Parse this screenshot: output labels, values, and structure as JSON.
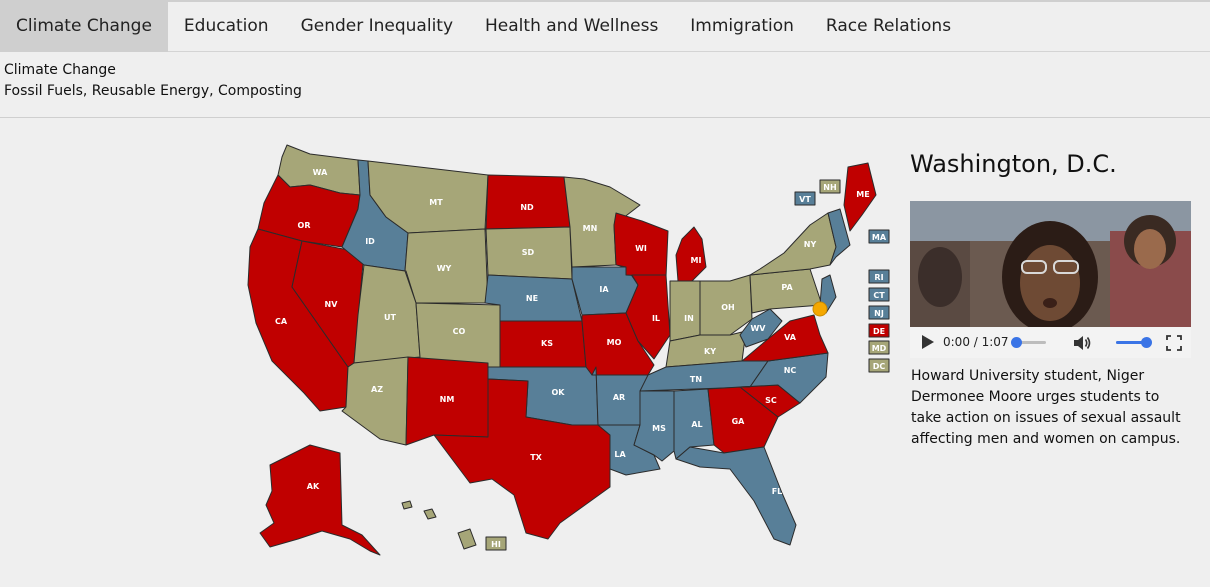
{
  "tabs": [
    {
      "label": "Climate Change",
      "active": true
    },
    {
      "label": "Education"
    },
    {
      "label": "Gender Inequality"
    },
    {
      "label": "Health and Wellness"
    },
    {
      "label": "Immigration"
    },
    {
      "label": "Race Relations"
    }
  ],
  "topic": {
    "title": "Climate Change",
    "keywords": "Fossil Fuels, Reusable Energy, Composting"
  },
  "colors": {
    "red": "#c00000",
    "blue": "#587f98",
    "olive": "#a6a678",
    "marker": "#f5a800"
  },
  "map": {
    "states": {
      "WA": "olive",
      "OR": "red",
      "CA": "red",
      "NV": "red",
      "ID": "blue",
      "MT": "olive",
      "WY": "olive",
      "UT": "olive",
      "AZ": "olive",
      "CO": "olive",
      "NM": "red",
      "ND": "red",
      "SD": "olive",
      "NE": "blue",
      "KS": "red",
      "OK": "blue",
      "TX": "red",
      "MN": "olive",
      "IA": "blue",
      "MO": "red",
      "AR": "blue",
      "LA": "blue",
      "WI": "red",
      "IL": "red",
      "MI": "red",
      "IN": "olive",
      "OH": "olive",
      "KY": "olive",
      "TN": "blue",
      "MS": "blue",
      "AL": "blue",
      "GA": "red",
      "FL": "blue",
      "SC": "red",
      "NC": "blue",
      "VA": "red",
      "WV": "blue",
      "PA": "olive",
      "NY": "olive",
      "ME": "red",
      "AK": "red",
      "HI": "olive"
    },
    "small_states": [
      {
        "code": "VT",
        "color": "blue"
      },
      {
        "code": "NH",
        "color": "olive"
      },
      {
        "code": "MA",
        "color": "blue"
      },
      {
        "code": "RI",
        "color": "blue"
      },
      {
        "code": "CT",
        "color": "blue"
      },
      {
        "code": "NJ",
        "color": "blue"
      },
      {
        "code": "DE",
        "color": "red"
      },
      {
        "code": "MD",
        "color": "olive"
      },
      {
        "code": "DC",
        "color": "olive"
      }
    ]
  },
  "location": {
    "title": "Washington, D.C.",
    "video": {
      "time": "0:00 / 1:07",
      "progress": 0.0,
      "volume": 1.0
    },
    "caption": "Howard University student, Niger Dermonee Moore urges students to take action on issues of sexual assault affecting men and women on campus."
  }
}
